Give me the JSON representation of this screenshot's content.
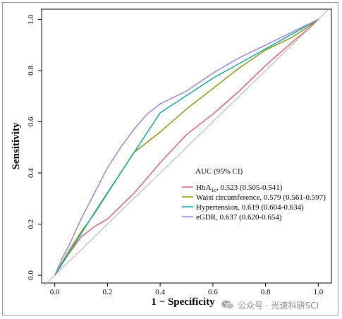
{
  "chart_data": {
    "type": "line",
    "xlabel": "1 − Specificity",
    "ylabel": "Sensitivity",
    "xlim": [
      -0.05,
      1.05
    ],
    "ylim": [
      -0.03,
      1.04
    ],
    "x_ticks": [
      "0.0",
      "0.2",
      "0.4",
      "0.6",
      "0.8",
      "1.0"
    ],
    "y_ticks": [
      "0.0",
      "0.2",
      "0.4",
      "0.6",
      "0.8",
      "1.0"
    ],
    "reference_line": true,
    "grid": false,
    "legend": {
      "title": "AUC (95% CI)",
      "position": "bottom-right",
      "items": [
        {
          "pre": "HbA",
          "sub": "1c",
          "post": ", 0.523 (0.505-0.541)",
          "color": "#d9637a"
        },
        {
          "pre": "Waist circumference, 0.579 (0.561-0.597)",
          "sub": "",
          "post": "",
          "color": "#8b9a17"
        },
        {
          "pre": "Hypertension, 0.619 (0.604-0.634)",
          "sub": "",
          "post": "",
          "color": "#17a5a0"
        },
        {
          "pre": "eGDR, 0.637 (0.620-0.654)",
          "sub": "",
          "post": "",
          "color": "#9b86d6"
        }
      ]
    },
    "series": [
      {
        "name": "HbA1c",
        "color": "#d9637a",
        "x": [
          0,
          0.05,
          0.1,
          0.15,
          0.2,
          0.3,
          0.4,
          0.5,
          0.6,
          0.7,
          0.8,
          0.9,
          0.97,
          1.0
        ],
        "y": [
          0,
          0.08,
          0.15,
          0.19,
          0.22,
          0.32,
          0.44,
          0.55,
          0.63,
          0.72,
          0.82,
          0.91,
          0.97,
          1.0
        ]
      },
      {
        "name": "Waist circumference",
        "color": "#8b9a17",
        "x": [
          0,
          0.05,
          0.1,
          0.15,
          0.2,
          0.3,
          0.4,
          0.5,
          0.6,
          0.7,
          0.8,
          0.9,
          0.96,
          1.0
        ],
        "y": [
          0,
          0.09,
          0.17,
          0.24,
          0.32,
          0.48,
          0.56,
          0.65,
          0.73,
          0.81,
          0.88,
          0.93,
          0.97,
          1.0
        ]
      },
      {
        "name": "Hypertension",
        "color": "#17a5a0",
        "x": [
          0,
          0.16,
          0.4,
          0.6,
          1.0
        ],
        "y": [
          0,
          0.26,
          0.635,
          0.77,
          1.0
        ]
      },
      {
        "name": "eGDR",
        "color": "#9b86d6",
        "x": [
          0,
          0.03,
          0.06,
          0.1,
          0.15,
          0.2,
          0.25,
          0.3,
          0.35,
          0.4,
          0.5,
          0.6,
          0.7,
          0.8,
          0.9,
          1.0
        ],
        "y": [
          0,
          0.07,
          0.13,
          0.22,
          0.32,
          0.42,
          0.5,
          0.57,
          0.63,
          0.67,
          0.72,
          0.79,
          0.85,
          0.9,
          0.95,
          1.0
        ]
      }
    ]
  },
  "watermark": {
    "text": "公众号 · 光速科研SCI",
    "icon": "wechat-icon"
  }
}
